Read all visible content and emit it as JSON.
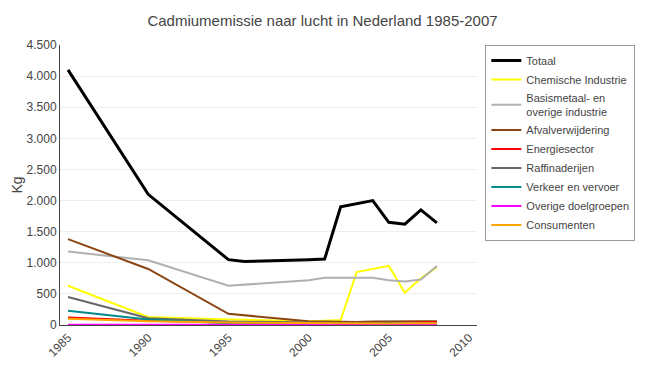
{
  "chart_data": {
    "type": "line",
    "title": "Cadmiumemissie naar lucht in Nederland 1985-2007",
    "y_label": "Kg",
    "xlim": [
      1984.5,
      2010.5
    ],
    "xticks": [
      1985,
      1990,
      1995,
      2000,
      2005,
      2010
    ],
    "ylim": [
      0,
      4500
    ],
    "yticks": [
      0,
      500,
      {
        "value": 1000,
        "label": "1.000"
      },
      {
        "value": 1500,
        "label": "1.500"
      },
      {
        "value": 2000,
        "label": "2.000"
      },
      {
        "value": 2500,
        "label": "2.500"
      },
      {
        "value": 3000,
        "label": "3.000"
      },
      {
        "value": 3500,
        "label": "3.500"
      },
      {
        "value": 4000,
        "label": "4.000"
      },
      {
        "value": 4500,
        "label": "4.500"
      }
    ],
    "grid": "y",
    "legend": "right",
    "series": [
      {
        "name": "Totaal",
        "color": "#000000",
        "x": [
          1985,
          1990,
          1995,
          1996,
          2000,
          2001,
          2002,
          2003,
          2004,
          2005,
          2006,
          2007,
          2008
        ],
        "values": [
          4100,
          2100,
          1050,
          1020,
          1050,
          1060,
          1900,
          1950,
          2000,
          1650,
          1620,
          1850,
          1640
        ]
      },
      {
        "name": "Chemische Industrie",
        "color": "#ffff00",
        "x": [
          1985,
          1990,
          1995,
          2000,
          2001,
          2002,
          2003,
          2004,
          2005,
          2006,
          2007,
          2008
        ],
        "values": [
          630,
          130,
          90,
          60,
          70,
          80,
          850,
          900,
          950,
          520,
          750,
          930
        ]
      },
      {
        "name": "Basismetaal- en\noverige industrie",
        "color": "#b0b0b0",
        "x": [
          1985,
          1990,
          1995,
          2000,
          2001,
          2002,
          2003,
          2004,
          2005,
          2006,
          2007,
          2008
        ],
        "values": [
          1180,
          1040,
          630,
          720,
          760,
          760,
          750,
          760,
          720,
          700,
          730,
          950
        ]
      },
      {
        "name": "Afvalverwijdering",
        "color": "#8B4513",
        "x": [
          1985,
          1990,
          1995,
          2000,
          2001,
          2002,
          2003,
          2004,
          2005,
          2006,
          2007,
          2008
        ],
        "values": [
          1380,
          900,
          180,
          60,
          55,
          50,
          50,
          55,
          60,
          60,
          60,
          60
        ]
      },
      {
        "name": "Energiesector",
        "color": "#ff0000",
        "x": [
          1985,
          1990,
          1995,
          2000,
          2001,
          2002,
          2003,
          2004,
          2005,
          2006,
          2007,
          2008
        ],
        "values": [
          120,
          70,
          40,
          30,
          25,
          25,
          25,
          30,
          30,
          35,
          40,
          50
        ]
      },
      {
        "name": "Raffinaderijen",
        "color": "#666666",
        "x": [
          1985,
          1990,
          1995,
          2000,
          2001,
          2002,
          2003,
          2004,
          2005,
          2006,
          2007,
          2008
        ],
        "values": [
          450,
          110,
          55,
          40,
          35,
          30,
          30,
          30,
          35,
          35,
          30,
          30
        ]
      },
      {
        "name": "Verkeer en vervoer",
        "color": "#008B8B",
        "x": [
          1985,
          1990,
          1995,
          2000,
          2001,
          2002,
          2003,
          2004,
          2005,
          2006,
          2007,
          2008
        ],
        "values": [
          230,
          90,
          30,
          15,
          12,
          10,
          10,
          10,
          10,
          10,
          10,
          10
        ]
      },
      {
        "name": "Overige doelgroepen",
        "color": "#ff00ff",
        "x": [
          1985,
          1990,
          1995,
          2000,
          2001,
          2002,
          2003,
          2004,
          2005,
          2006,
          2007,
          2008
        ],
        "values": [
          5,
          5,
          5,
          5,
          5,
          5,
          5,
          5,
          5,
          5,
          5,
          5
        ]
      },
      {
        "name": "Consumenten",
        "color": "#FFA500",
        "x": [
          1985,
          1990,
          1995,
          2000,
          2001,
          2002,
          2003,
          2004,
          2005,
          2006,
          2007,
          2008
        ],
        "values": [
          100,
          60,
          40,
          30,
          28,
          25,
          25,
          25,
          25,
          30,
          30,
          30
        ]
      }
    ]
  }
}
